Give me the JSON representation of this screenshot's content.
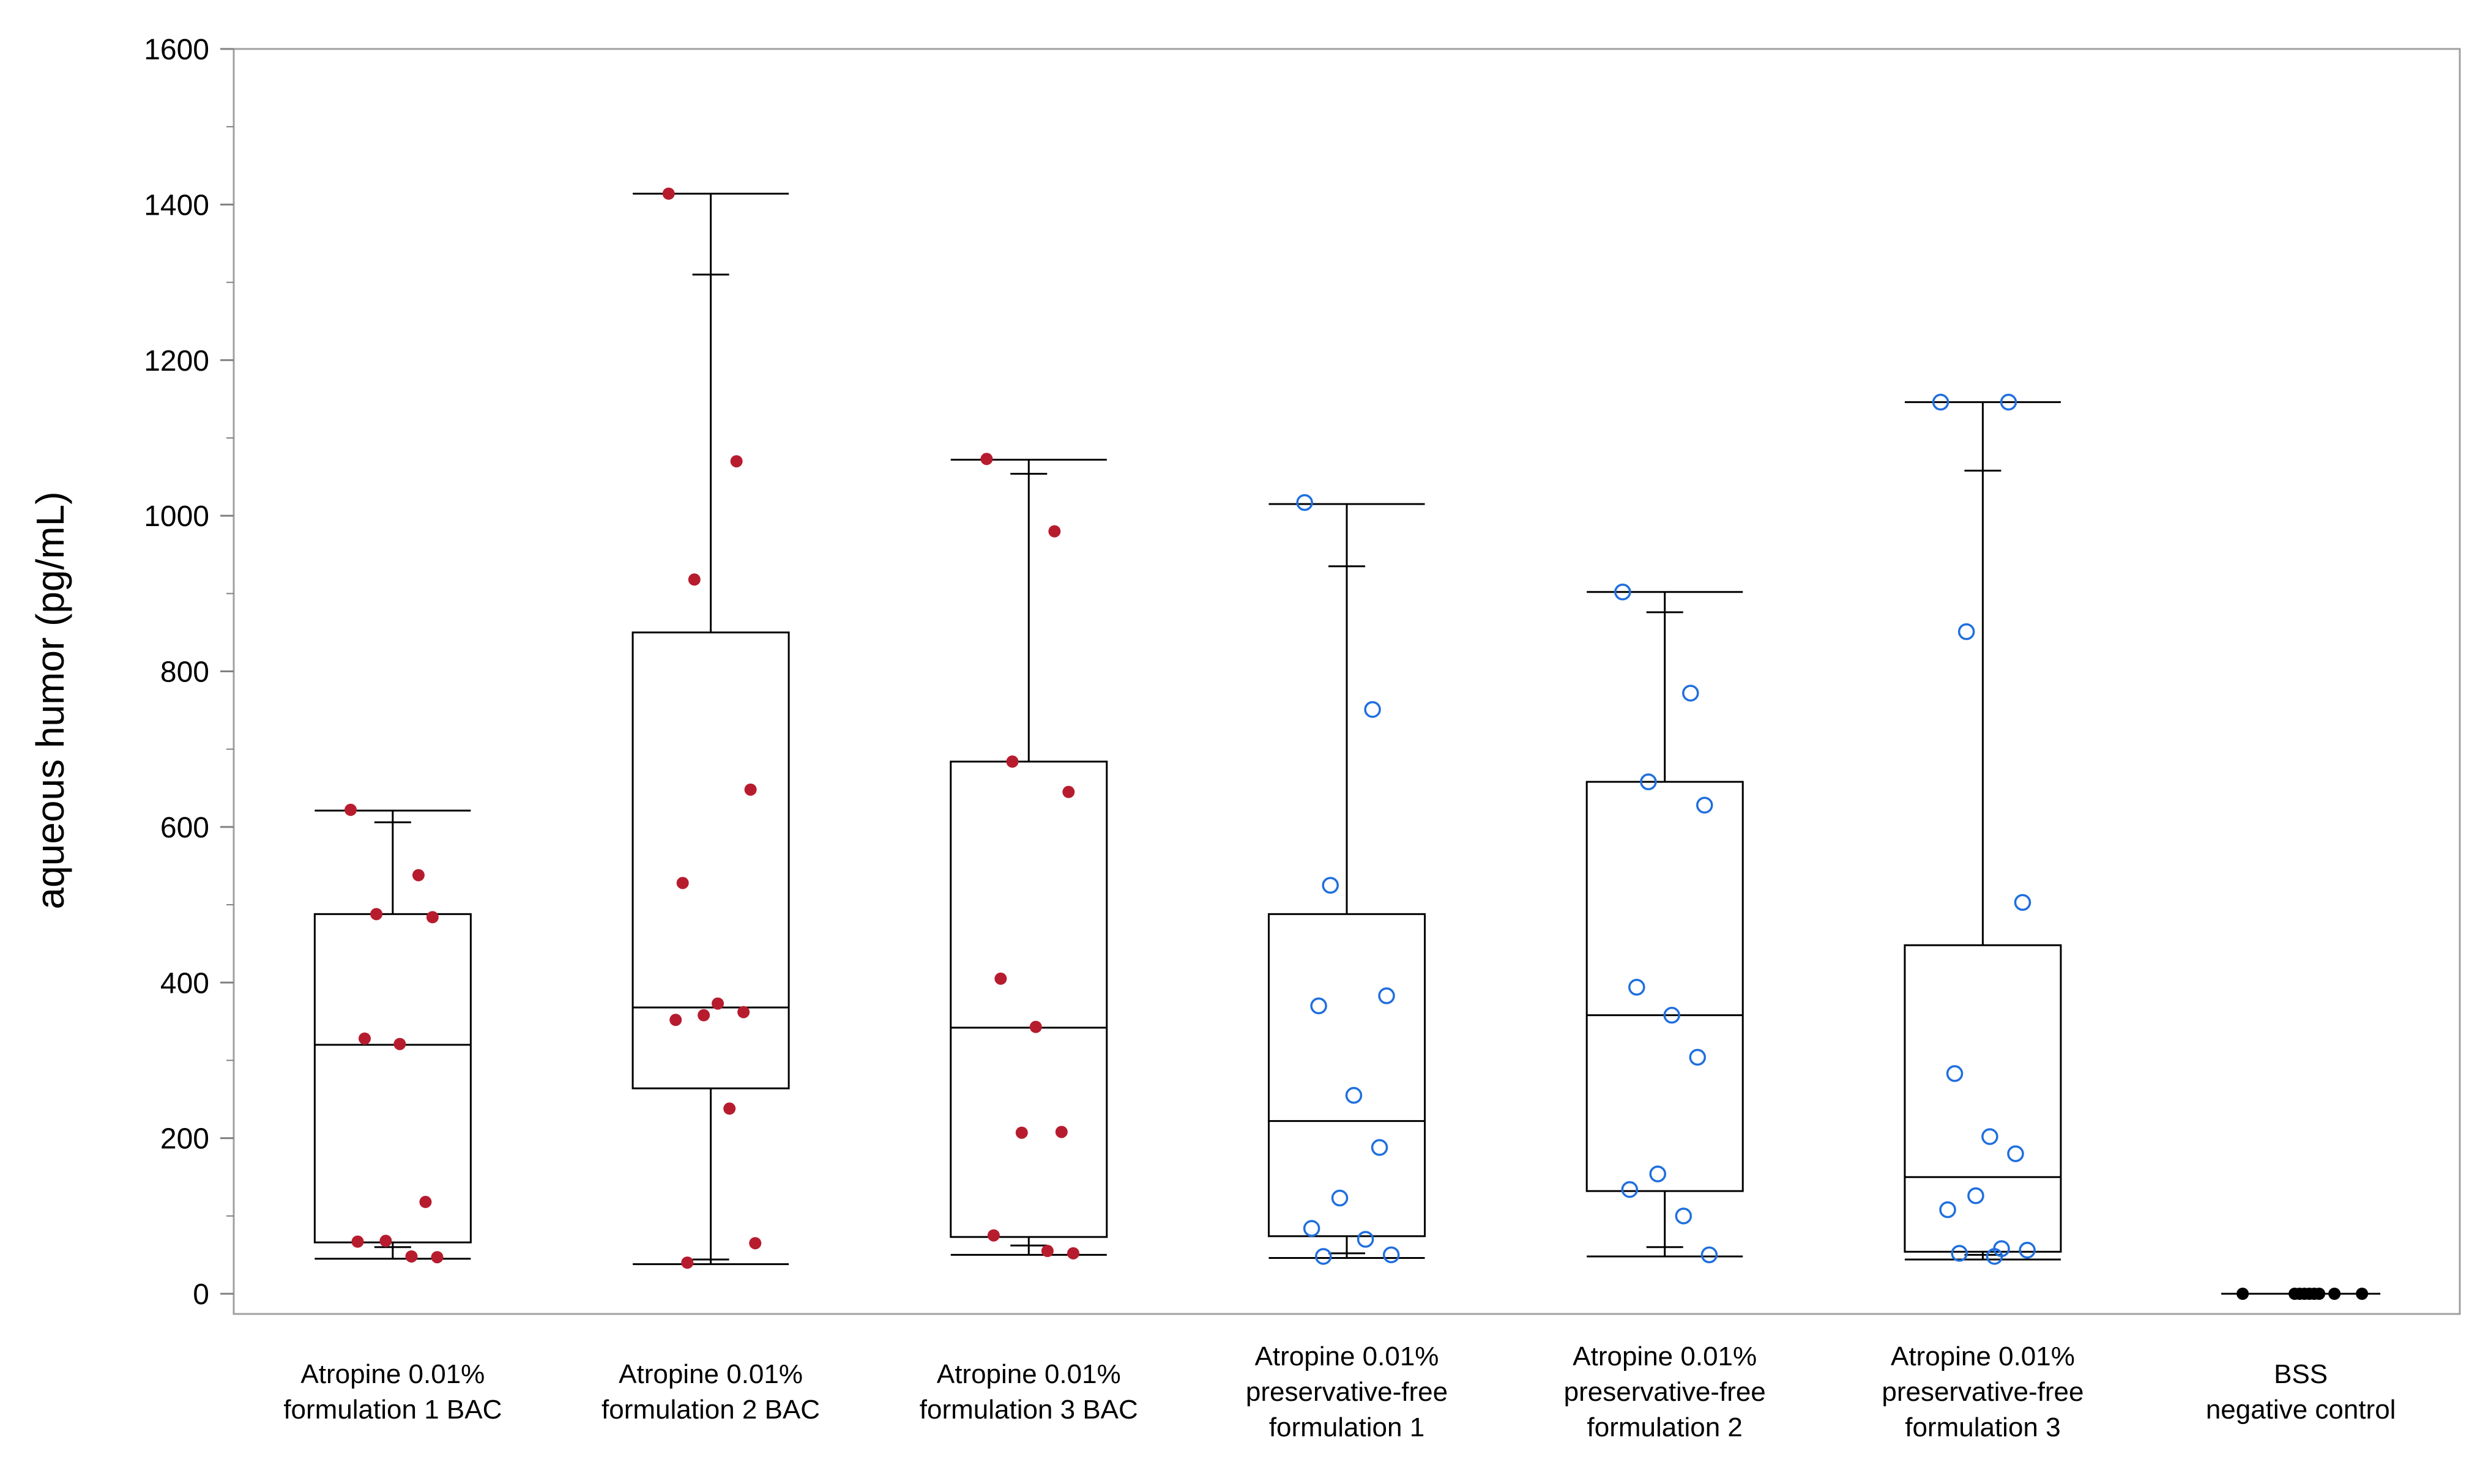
{
  "chart_data": {
    "type": "boxplot",
    "title": "",
    "xlabel": "",
    "ylabel": "aqueous humor (pg/mL)",
    "ylim": [
      0,
      1600
    ],
    "yticks": [
      0,
      200,
      400,
      600,
      800,
      1000,
      1200,
      1400,
      1600
    ],
    "ytick_labels": [
      "0",
      "200",
      "400",
      "600",
      "800",
      "1000",
      "1200",
      "1400",
      "1600"
    ],
    "grid": false,
    "colors": {
      "bac_points": "#b71c2e",
      "pf_points": "#1f6fde",
      "control_points": "#000000",
      "box_stroke": "#000000",
      "frame": "#a0a0a0"
    },
    "categories": [
      {
        "label_lines": [
          "Atropine 0.01%",
          "formulation 1 BAC"
        ],
        "marker": "filled",
        "color": "#b71c2e",
        "box": {
          "min": 45,
          "q1": 66,
          "median": 320,
          "q3": 488,
          "max": 621
        },
        "whisker_caps": [
          606,
          60
        ],
        "points": [
          622,
          538,
          488,
          484,
          328,
          321,
          118,
          68,
          67,
          48,
          47
        ]
      },
      {
        "label_lines": [
          "Atropine 0.01%",
          "formulation 2 BAC"
        ],
        "marker": "filled",
        "color": "#b71c2e",
        "box": {
          "min": 38,
          "q1": 264,
          "median": 368,
          "q3": 850,
          "max": 1414
        },
        "whisker_caps": [
          1310,
          44
        ],
        "points": [
          1414,
          1070,
          918,
          648,
          528,
          373,
          362,
          358,
          352,
          238,
          65,
          40
        ]
      },
      {
        "label_lines": [
          "Atropine 0.01%",
          "formulation 3 BAC"
        ],
        "marker": "filled",
        "color": "#b71c2e",
        "box": {
          "min": 50,
          "q1": 73,
          "median": 342,
          "q3": 684,
          "max": 1072
        },
        "whisker_caps": [
          1054,
          62
        ],
        "points": [
          1073,
          980,
          684,
          645,
          405,
          343,
          208,
          207,
          75,
          55,
          52
        ]
      },
      {
        "label_lines": [
          "Atropine 0.01%",
          "preservative-free",
          "formulation 1"
        ],
        "marker": "open",
        "color": "#1f6fde",
        "box": {
          "min": 46,
          "q1": 74,
          "median": 222,
          "q3": 488,
          "max": 1015
        },
        "whisker_caps": [
          935,
          52
        ],
        "points": [
          1017,
          751,
          525,
          383,
          370,
          255,
          188,
          123,
          84,
          70,
          50,
          48
        ]
      },
      {
        "label_lines": [
          "Atropine 0.01%",
          "preservative-free",
          "formulation 2"
        ],
        "marker": "open",
        "color": "#1f6fde",
        "box": {
          "min": 48,
          "q1": 132,
          "median": 358,
          "q3": 658,
          "max": 902
        },
        "whisker_caps": [
          876,
          60
        ],
        "points": [
          902,
          772,
          658,
          628,
          394,
          358,
          304,
          154,
          134,
          100,
          50
        ]
      },
      {
        "label_lines": [
          "Atropine 0.01%",
          "preservative-free",
          "formulation 3"
        ],
        "marker": "open",
        "color": "#1f6fde",
        "box": {
          "min": 44,
          "q1": 54,
          "median": 150,
          "q3": 448,
          "max": 1146
        },
        "whisker_caps": [
          1058,
          50
        ],
        "points": [
          1146,
          1146,
          851,
          503,
          283,
          202,
          180,
          126,
          108,
          58,
          56,
          52,
          48
        ]
      },
      {
        "label_lines": [
          "BSS",
          "negative control"
        ],
        "marker": "filled",
        "color": "#000000",
        "box": {
          "min": 0,
          "q1": 0,
          "median": 0,
          "q3": 0,
          "max": 0
        },
        "whisker_caps": [],
        "points": [
          0,
          0,
          0,
          0,
          0,
          0,
          0,
          0,
          0
        ]
      }
    ]
  }
}
